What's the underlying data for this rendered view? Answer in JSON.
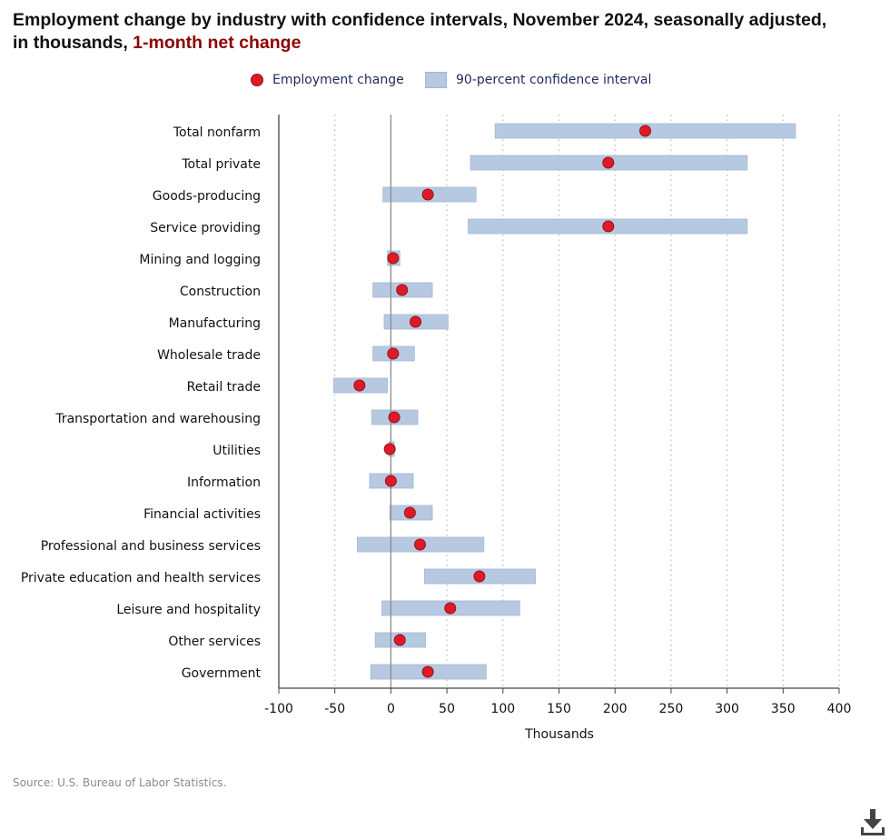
{
  "title_main": "Employment change by industry with confidence intervals, November 2024, seasonally adjusted, in thousands, ",
  "title_accent": "1-month net change",
  "legend": {
    "point_label": "Employment change",
    "interval_label": "90-percent confidence interval"
  },
  "source": "Source: U.S. Bureau of Labor Statistics.",
  "colors": {
    "point": "#dd1b26",
    "point_stroke": "#9a1018",
    "interval": "#b6c9e1",
    "interval_stroke": "#a3b8d3",
    "title_accent": "#8b0000",
    "legend_text": "#1f2a5c"
  },
  "icons": {
    "download": "download-icon"
  },
  "chart_data": {
    "type": "scatter",
    "subtype": "dot-with-interval",
    "title": "Employment change by industry with confidence intervals, November 2024, seasonally adjusted, in thousands, 1-month net change",
    "xlabel": "Thousands",
    "ylabel": "",
    "xlim": [
      -100,
      400
    ],
    "xticks": [
      -100,
      -50,
      0,
      50,
      100,
      150,
      200,
      250,
      300,
      350,
      400
    ],
    "grid": "vertical-dotted",
    "legend_position": "top-center",
    "series": [
      {
        "name": "Employment change",
        "kind": "point"
      },
      {
        "name": "90-percent confidence interval",
        "kind": "interval"
      }
    ],
    "categories": [
      "Total nonfarm",
      "Total private",
      "Goods-producing",
      "Service providing",
      "Mining and logging",
      "Construction",
      "Manufacturing",
      "Wholesale trade",
      "Retail trade",
      "Transportation and warehousing",
      "Utilities",
      "Information",
      "Financial activities",
      "Professional and business services",
      "Private education and health services",
      "Leisure and hospitality",
      "Other services",
      "Government"
    ],
    "values": [
      227,
      194,
      33,
      194,
      2,
      10,
      22,
      2,
      -28,
      3,
      -1,
      0,
      17,
      26,
      79,
      53,
      8,
      33
    ],
    "ci_low": [
      93,
      71,
      -7,
      69,
      -3,
      -16,
      -6,
      -16,
      -51,
      -17,
      -2,
      -19,
      -1,
      -30,
      30,
      -8,
      -14,
      -18
    ],
    "ci_high": [
      361,
      318,
      76,
      318,
      8,
      37,
      51,
      21,
      -3,
      24,
      3,
      20,
      37,
      83,
      129,
      115,
      31,
      85
    ]
  }
}
